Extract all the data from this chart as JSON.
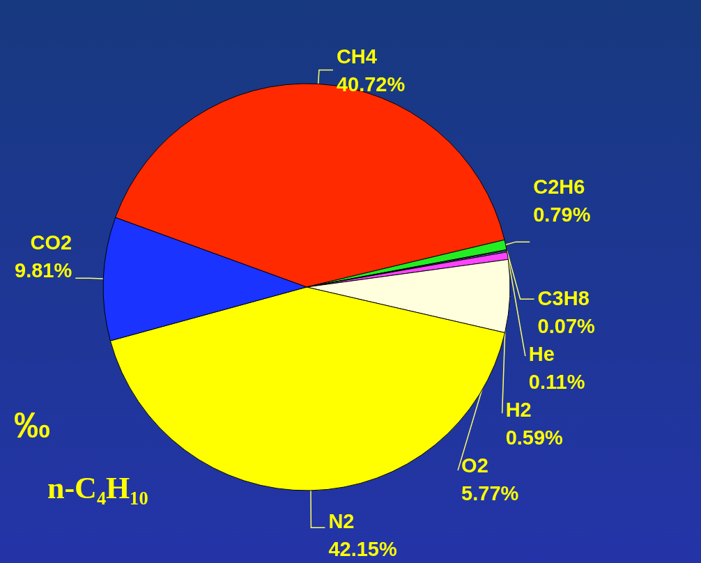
{
  "chart_data": {
    "type": "pie",
    "categories": [
      "CH4",
      "C2H6",
      "C3H8",
      "He",
      "H2",
      "O2",
      "N2",
      "CO2"
    ],
    "values": [
      40.72,
      0.79,
      0.07,
      0.11,
      0.59,
      5.77,
      42.15,
      9.81
    ],
    "value_labels": [
      "40.72%",
      "0.79%",
      "0.07%",
      "0.11%",
      "0.59%",
      "5.77%",
      "42.15%",
      "9.81%"
    ],
    "colors": [
      "#ff2a00",
      "#22ee22",
      "#ffffff",
      "#8080ff",
      "#ff44ff",
      "#ffffdd",
      "#ffff00",
      "#1a33ff"
    ],
    "annotations": [
      "‰",
      "n-C₄H₁₀"
    ],
    "legend": false
  }
}
